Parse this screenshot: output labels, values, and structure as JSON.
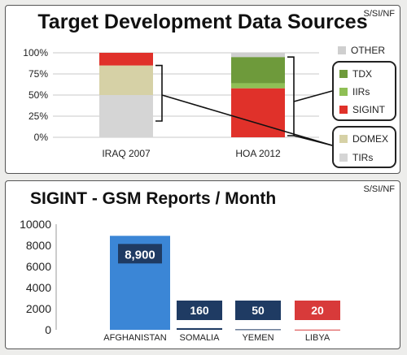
{
  "classification": "S/SI/NF",
  "chart_data": [
    {
      "type": "bar",
      "stacked": true,
      "title": "Target Development Data Sources",
      "categories": [
        "IRAQ 2007",
        "HOA 2012"
      ],
      "yticks": [
        "100%",
        "75%",
        "50%",
        "25%",
        "0%"
      ],
      "ylim": [
        0,
        100
      ],
      "series": [
        {
          "name": "TIRs",
          "color": "#d5d5d5",
          "values": [
            50,
            0
          ]
        },
        {
          "name": "DOMEX",
          "color": "#d6d1a6",
          "values": [
            35,
            0
          ]
        },
        {
          "name": "SIGINT",
          "color": "#e0312a",
          "values": [
            15,
            58
          ]
        },
        {
          "name": "IIRs",
          "color": "#8fbf55",
          "values": [
            0,
            6
          ]
        },
        {
          "name": "TDX",
          "color": "#6e9a3b",
          "values": [
            0,
            31
          ]
        },
        {
          "name": "OTHER",
          "color": "#cfcfcf",
          "values": [
            0,
            5
          ]
        }
      ],
      "legend_order": [
        "OTHER",
        "TDX",
        "IIRs",
        "SIGINT",
        "DOMEX",
        "TIRs"
      ],
      "legend_groups": [
        [
          "TDX",
          "IIRs",
          "SIGINT"
        ],
        [
          "DOMEX",
          "TIRs"
        ]
      ]
    },
    {
      "type": "bar",
      "title": "SIGINT - GSM Reports / Month",
      "categories": [
        "AFGHANISTAN",
        "SOMALIA",
        "YEMEN",
        "LIBYA"
      ],
      "values": [
        8900,
        160,
        50,
        20
      ],
      "data_labels": [
        "8,900",
        "160",
        "50",
        "20"
      ],
      "colors": [
        "#3b86d6",
        "#1f3b63",
        "#1f3b63",
        "#d83a3a"
      ],
      "yticks": [
        "10000",
        "8000",
        "6000",
        "4000",
        "2000",
        "0"
      ],
      "ylim": [
        0,
        10000
      ]
    }
  ]
}
